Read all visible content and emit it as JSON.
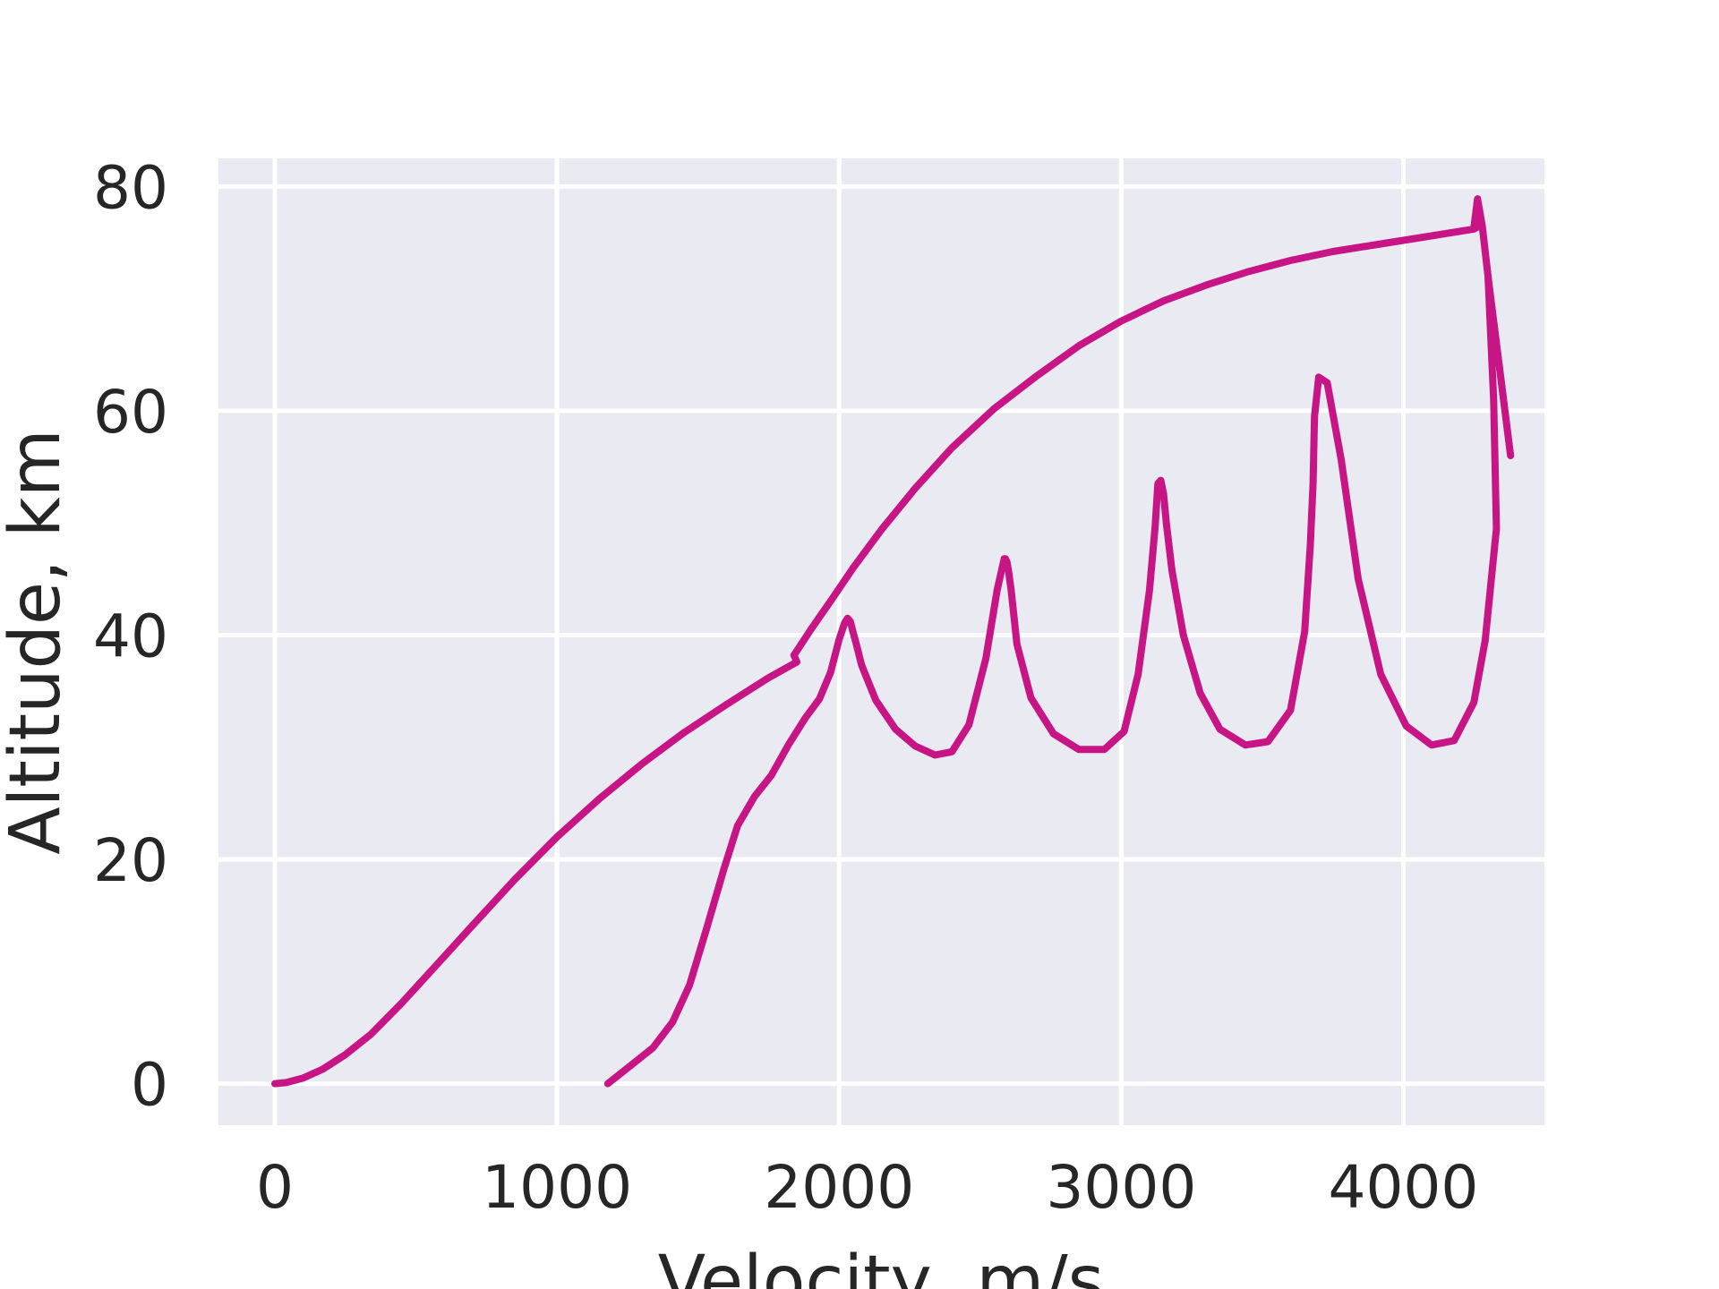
{
  "chart_data": {
    "type": "line",
    "title": "",
    "xlabel": "Velocity, m/s",
    "ylabel": "Altitude, km",
    "xlim": [
      -200,
      4500
    ],
    "ylim": [
      -3.7,
      82.5
    ],
    "xticks": [
      0,
      1000,
      2000,
      3000,
      4000
    ],
    "yticks": [
      0,
      20,
      40,
      60,
      80
    ],
    "grid": true,
    "legend": "none",
    "colors": {
      "background": "#eaeaf2",
      "grid": "#ffffff",
      "line": "#c71585",
      "text": "#262626"
    },
    "series": [
      {
        "x": [
          0,
          40,
          100,
          170,
          250,
          340,
          450,
          570,
          700,
          850,
          1000,
          1150,
          1300,
          1450,
          1600,
          1750,
          1850,
          1840,
          1900,
          1980,
          2050,
          2150,
          2270,
          2400,
          2550,
          2700,
          2850,
          3000,
          3150,
          3300,
          3450,
          3600,
          3750,
          3900,
          4050,
          4150,
          4250,
          4270,
          4250,
          4263,
          4263,
          4280,
          4300,
          4320,
          4340,
          4360,
          4380
        ],
        "y": [
          0,
          0.1,
          0.5,
          1.3,
          2.6,
          4.4,
          7.2,
          10.5,
          14.1,
          18.2,
          22.0,
          25.4,
          28.5,
          31.3,
          33.8,
          36.2,
          37.6,
          38.2,
          40.5,
          43.4,
          46.0,
          49.4,
          53.1,
          56.7,
          60.2,
          63.1,
          65.8,
          68.0,
          69.8,
          71.2,
          72.4,
          73.4,
          74.2,
          74.8,
          75.4,
          75.8,
          76.2,
          76.5,
          76.3,
          78.9,
          78.9,
          76.4,
          72.0,
          68.0,
          64.0,
          60.0,
          56.0
        ]
      },
      {
        "x": [
          1180,
          1260,
          1340,
          1410,
          1470,
          1530,
          1590,
          1640,
          1700,
          1760,
          1820,
          1880,
          1930,
          1970,
          2000,
          2020,
          2030,
          2040,
          2050,
          2060,
          2080,
          2130,
          2200,
          2270,
          2340,
          2400,
          2460,
          2520,
          2560,
          2585,
          2590,
          2595,
          2600,
          2610,
          2630,
          2680,
          2760,
          2850,
          2940,
          3010,
          3060,
          3100,
          3120,
          3130,
          3140,
          3150,
          3160,
          3180,
          3220,
          3280,
          3350,
          3440,
          3520,
          3600,
          3650,
          3670,
          3680,
          3685,
          3700,
          3730,
          3780,
          3840,
          3920,
          4010,
          4100,
          4180,
          4250,
          4290,
          4310,
          4330,
          4320,
          4300
        ],
        "y": [
          0,
          1.6,
          3.2,
          5.5,
          8.8,
          13.8,
          19.0,
          23.0,
          25.6,
          27.5,
          30.2,
          32.6,
          34.3,
          36.7,
          39.6,
          41.1,
          41.5,
          41.2,
          40.2,
          39.3,
          37.3,
          34.2,
          31.6,
          30.1,
          29.3,
          29.6,
          32.0,
          37.9,
          44.0,
          46.8,
          46.8,
          46.5,
          45.8,
          44.0,
          39.2,
          34.4,
          31.2,
          29.8,
          29.8,
          31.4,
          36.5,
          44.0,
          49.7,
          53.5,
          53.8,
          52.6,
          49.9,
          45.7,
          40.0,
          34.8,
          31.6,
          30.2,
          30.5,
          33.3,
          40.3,
          48.0,
          53.5,
          59.5,
          63.0,
          62.5,
          55.6,
          45.0,
          36.5,
          31.9,
          30.2,
          30.6,
          34.0,
          39.5,
          44.5,
          49.5,
          61.0,
          72.0
        ]
      }
    ]
  }
}
